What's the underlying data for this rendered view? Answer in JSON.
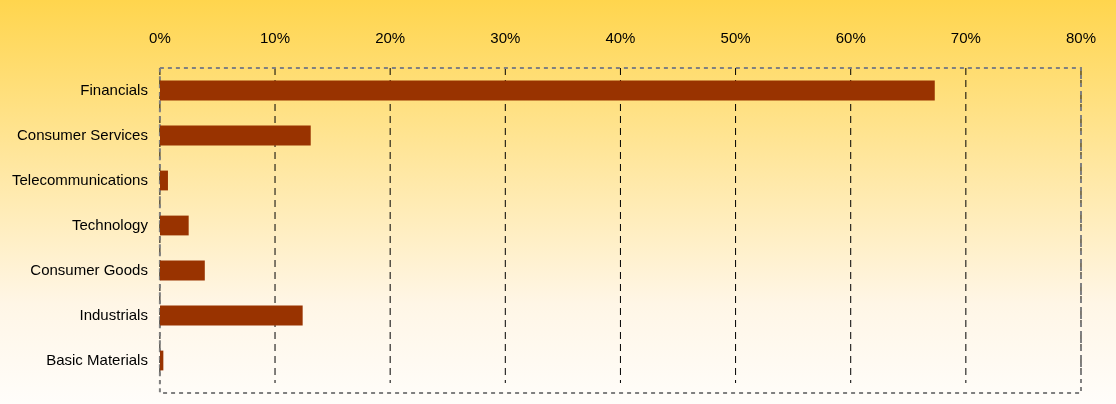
{
  "chart_data": {
    "type": "bar",
    "orientation": "horizontal",
    "categories": [
      "Financials",
      "Consumer Services",
      "Telecommunications",
      "Technology",
      "Consumer Goods",
      "Industrials",
      "Basic Materials"
    ],
    "values": [
      67.3,
      13.1,
      0.7,
      2.5,
      3.9,
      12.4,
      0.3
    ],
    "color": "#993300",
    "xlim": [
      0,
      80
    ],
    "xticks": [
      {
        "value": 0,
        "label": "0%"
      },
      {
        "value": 10,
        "label": "10%"
      },
      {
        "value": 20,
        "label": "20%"
      },
      {
        "value": 30,
        "label": "30%"
      },
      {
        "value": 40,
        "label": "40%"
      },
      {
        "value": 50,
        "label": "50%"
      },
      {
        "value": 60,
        "label": "60%"
      },
      {
        "value": 70,
        "label": "70%"
      },
      {
        "value": 80,
        "label": "80%"
      }
    ],
    "grid": "x",
    "legend": false
  }
}
